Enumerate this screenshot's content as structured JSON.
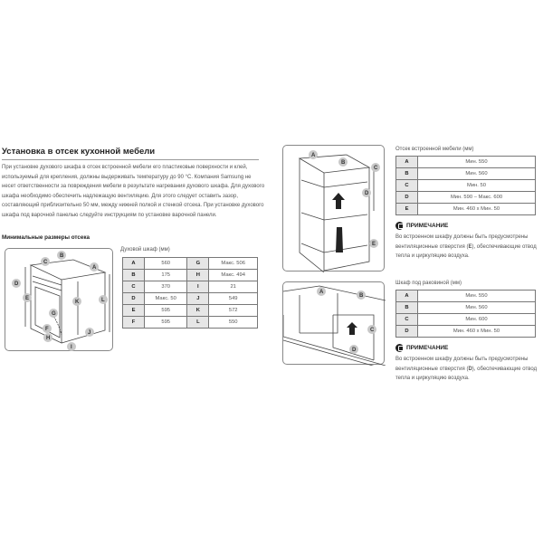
{
  "title": "Установка в отсек кухонной мебели",
  "intro": "При установке духового шкафа в отсек встроенной мебели его пластиковые поверхности и клей, используемый для крепления, должны выдерживать температуру до 90 °C. Компания Samsung не несет ответственности за повреждения мебели в результате нагревания духового шкафа. Для духового шкафа необходимо обеспечить надлежащую вентиляцию. Для этого следует оставить зазор, составляющий приблизительно 50 мм, между нижней полкой и стенкой отсека. При установке духового шкафа под варочной панелью следуйте инструкциям по установке варочной панели.",
  "min_dims_heading": "Минимальные размеры отсека",
  "oven_table": {
    "caption": "Духовой шкаф (мм)",
    "rows": [
      [
        "A",
        "560",
        "G",
        "Макс. 506"
      ],
      [
        "B",
        "175",
        "H",
        "Макс. 494"
      ],
      [
        "C",
        "370",
        "I",
        "21"
      ],
      [
        "D",
        "Макс. 50",
        "J",
        "549"
      ],
      [
        "E",
        "595",
        "K",
        "572"
      ],
      [
        "F",
        "595",
        "L",
        "550"
      ]
    ]
  },
  "cabinet_table": {
    "caption": "Отсек встроенной мебели (мм)",
    "rows": [
      [
        "A",
        "Мин. 550"
      ],
      [
        "B",
        "Мин. 560"
      ],
      [
        "C",
        "Мин. 50"
      ],
      [
        "D",
        "Мин. 590 – Макс. 600"
      ],
      [
        "E",
        "Мин. 460 x Мин. 50"
      ]
    ]
  },
  "note1": {
    "heading": "ПРИМЕЧАНИЕ",
    "text_before": "Во встроенном шкафу должны быть предусмотрены вентиляционные отверстия (",
    "bold": "E",
    "text_after": "), обеспечивающие отвод тепла и циркуляцию воздуха."
  },
  "sink_table": {
    "caption": "Шкаф под раковиной (мм)",
    "rows": [
      [
        "A",
        "Мин. 550"
      ],
      [
        "B",
        "Мин. 560"
      ],
      [
        "C",
        "Мин. 600"
      ],
      [
        "D",
        "Мин. 460 x Мин. 50"
      ]
    ]
  },
  "note2": {
    "heading": "ПРИМЕЧАНИЕ",
    "text_before": "Во встроенном шкафу должны быть предусмотрены вентиляционные отверстия (",
    "bold": "D",
    "text_after": "), обеспечивающие отвод тепла и циркуляцию воздуха."
  },
  "labels": {
    "oven": [
      "A",
      "B",
      "C",
      "D",
      "E",
      "F",
      "G",
      "H",
      "I",
      "J",
      "K",
      "L"
    ],
    "cabinet": [
      "A",
      "B",
      "C",
      "D",
      "E"
    ],
    "sink": [
      "A",
      "B",
      "C",
      "D"
    ]
  }
}
